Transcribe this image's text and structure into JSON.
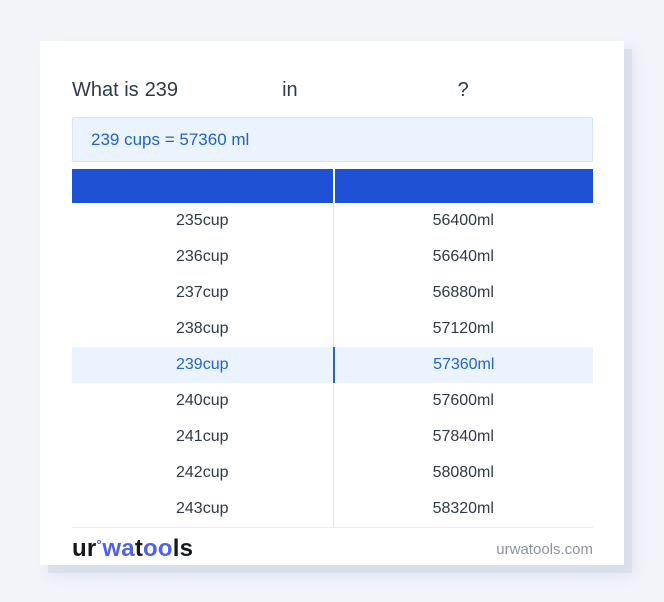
{
  "question": {
    "prefix": "What is",
    "value": "239",
    "from_unit": "",
    "connector": "in",
    "to_unit": "",
    "suffix": "?"
  },
  "result": {
    "text": "239 cups = 57360 ml"
  },
  "table": {
    "header": {
      "col1": "",
      "col2": ""
    },
    "rows": [
      {
        "from": "235cup",
        "to": "56400ml",
        "highlighted": false
      },
      {
        "from": "236cup",
        "to": "56640ml",
        "highlighted": false
      },
      {
        "from": "237cup",
        "to": "56880ml",
        "highlighted": false
      },
      {
        "from": "238cup",
        "to": "57120ml",
        "highlighted": false
      },
      {
        "from": "239cup",
        "to": "57360ml",
        "highlighted": true
      },
      {
        "from": "240cup",
        "to": "57600ml",
        "highlighted": false
      },
      {
        "from": "241cup",
        "to": "57840ml",
        "highlighted": false
      },
      {
        "from": "242cup",
        "to": "58080ml",
        "highlighted": false
      },
      {
        "from": "243cup",
        "to": "58320ml",
        "highlighted": false
      }
    ]
  },
  "footer": {
    "brand": {
      "full": "urwatools",
      "part1": "ur",
      "part2": "wa",
      "part3": "t",
      "part4": "oo",
      "part5": "ls"
    },
    "site": "urwatools.com"
  },
  "colors": {
    "page_background": "#f2f4f9",
    "card_background": "#ffffff",
    "table_header_blue": "#1e51d6",
    "highlight_background": "#eaf3fe",
    "highlight_text": "#2465c9",
    "result_text": "#2263c6",
    "body_text": "#2f3a48",
    "footer_gray": "#8b94a4",
    "brand_blue": "#5063e6"
  }
}
